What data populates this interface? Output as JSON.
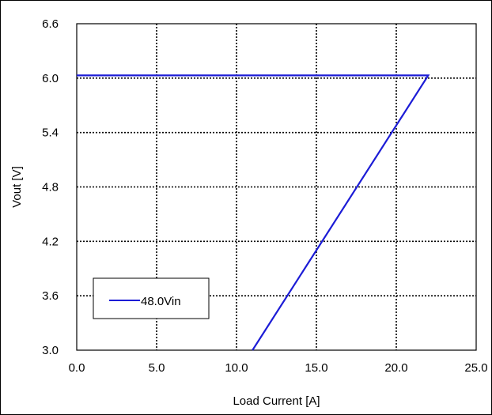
{
  "chart_data": {
    "type": "line",
    "title": "",
    "xlabel": "Load Current [A]",
    "ylabel": "Vout [V]",
    "xlim": [
      0,
      25
    ],
    "ylim": [
      3.0,
      6.6
    ],
    "x_ticks": [
      "0.0",
      "5.0",
      "10.0",
      "15.0",
      "20.0",
      "25.0"
    ],
    "y_ticks": [
      "3.0",
      "3.6",
      "4.2",
      "4.8",
      "5.4",
      "6.0",
      "6.6"
    ],
    "grid": true,
    "legend_position": "lower-left",
    "series": [
      {
        "name": "48.0Vin",
        "color": "#1c1cd6",
        "x": [
          0.0,
          22.0,
          11.0
        ],
        "y": [
          6.03,
          6.03,
          3.0
        ]
      }
    ]
  }
}
